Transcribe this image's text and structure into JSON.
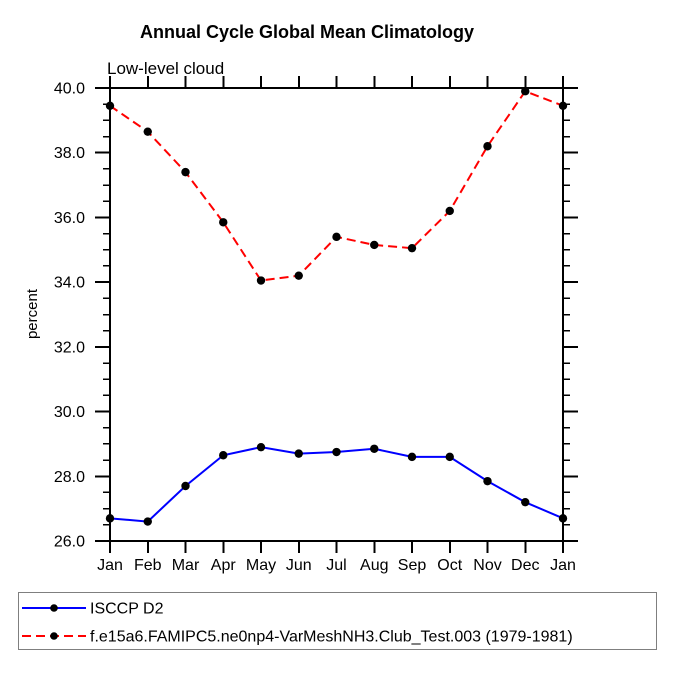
{
  "header": {
    "title": "Annual Cycle Global Mean Climatology",
    "subtitle": "Low-level cloud"
  },
  "colors": {
    "series1": "#0000ff",
    "series2": "#ff0000",
    "marker": "#000000",
    "axis": "#000000",
    "legend_border": "#7f7f7f",
    "background": "#ffffff"
  },
  "chart_data": {
    "type": "line",
    "title": "Annual Cycle Global Mean Climatology",
    "subtitle": "Low-level cloud",
    "xlabel": "",
    "ylabel": "percent",
    "categories": [
      "Jan",
      "Feb",
      "Mar",
      "Apr",
      "May",
      "Jun",
      "Jul",
      "Aug",
      "Sep",
      "Oct",
      "Nov",
      "Dec",
      "Jan"
    ],
    "ylim": [
      26.0,
      40.0
    ],
    "y_major_step": 2.0,
    "y_minor_step": 0.5,
    "y_tick_labels": [
      "26.0",
      "28.0",
      "30.0",
      "32.0",
      "34.0",
      "36.0",
      "38.0",
      "40.0"
    ],
    "grid": false,
    "legend_position": "bottom-left-box",
    "series": [
      {
        "name": "ISCCP D2",
        "color": "#0000ff",
        "dash": "solid",
        "marker": "circle",
        "marker_color": "#000000",
        "values": [
          26.7,
          26.6,
          27.7,
          28.65,
          28.9,
          28.7,
          28.75,
          28.85,
          28.6,
          28.6,
          27.85,
          27.2,
          26.7
        ]
      },
      {
        "name": "f.e15a6.FAMIPC5.ne0np4-VarMeshNH3.Club_Test.003 (1979-1981)",
        "color": "#ff0000",
        "dash": "dashed",
        "marker": "circle",
        "marker_color": "#000000",
        "values": [
          39.45,
          38.65,
          37.4,
          35.85,
          34.05,
          34.2,
          35.4,
          35.15,
          35.05,
          36.2,
          38.2,
          39.9,
          39.45
        ]
      }
    ]
  }
}
